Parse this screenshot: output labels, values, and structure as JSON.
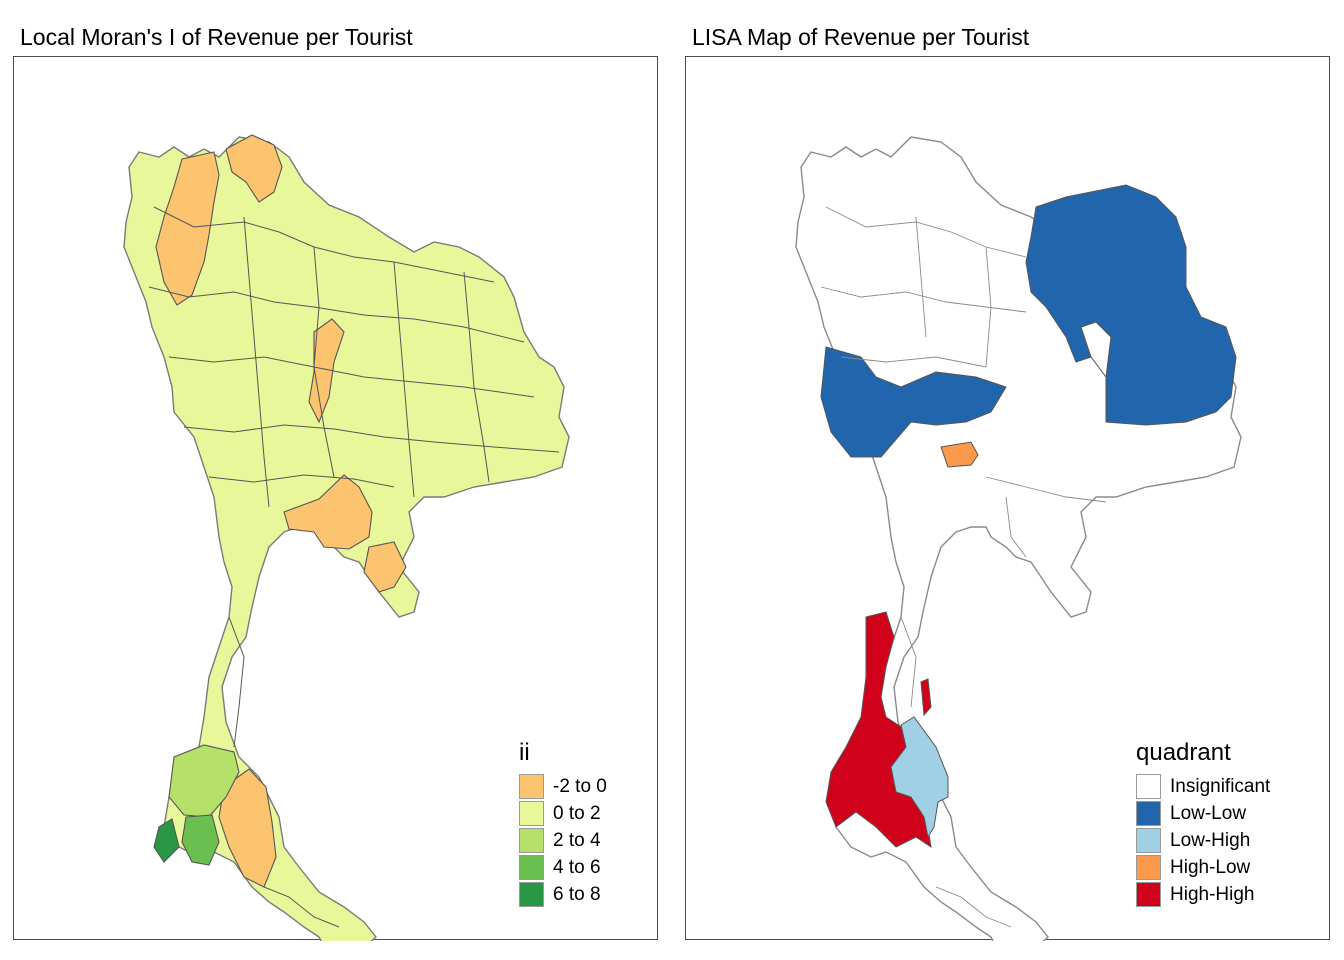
{
  "panels": [
    {
      "title": "Local Moran's I of Revenue per Tourist",
      "legend": {
        "title": "ii",
        "items": [
          {
            "label": "-2 to 0",
            "color": "#fcc46f"
          },
          {
            "label": "0 to 2",
            "color": "#e8f79a"
          },
          {
            "label": "2 to 4",
            "color": "#b5e06a"
          },
          {
            "label": "4 to 6",
            "color": "#6bbf4e"
          },
          {
            "label": "6 to 8",
            "color": "#2b9746"
          }
        ]
      }
    },
    {
      "title": "LISA Map of Revenue per Tourist",
      "legend": {
        "title": "quadrant",
        "items": [
          {
            "label": "Insignificant",
            "color": "#ffffff"
          },
          {
            "label": "Low-Low",
            "color": "#2166ac"
          },
          {
            "label": "Low-High",
            "color": "#9fd0e3"
          },
          {
            "label": "High-Low",
            "color": "#fb9a4c"
          },
          {
            "label": "High-High",
            "color": "#d0021b"
          }
        ]
      }
    }
  ]
}
